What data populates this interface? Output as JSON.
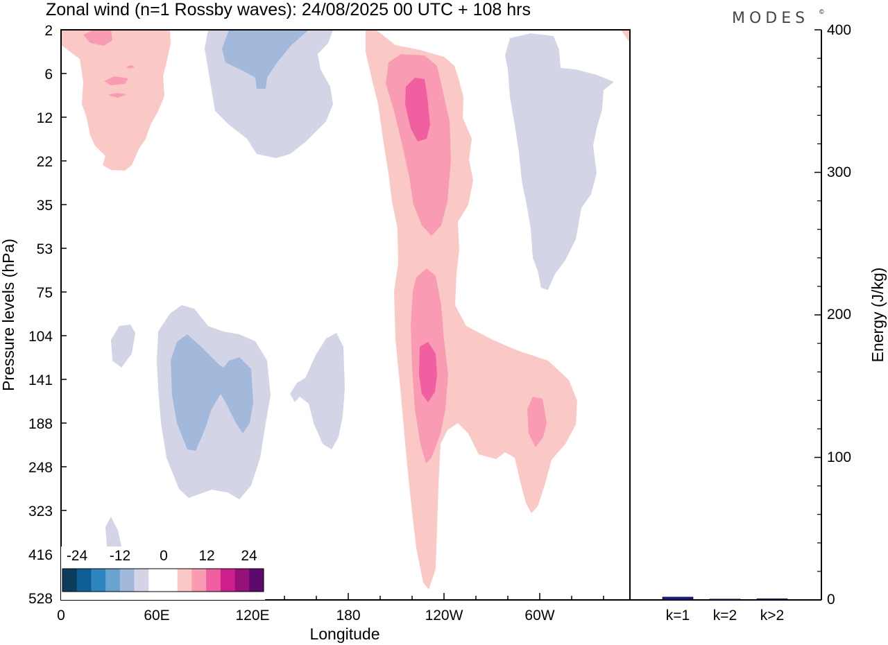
{
  "title": "Zonal wind (n=1 Rossby waves):  24/08/2025  00 UTC  + 108 hrs",
  "logo": "MODES",
  "logo_mark": "©",
  "chart_data": {
    "type": "contour",
    "xlabel": "Longitude",
    "ylabel": "Pressure levels (hPa)",
    "x_ticks": [
      "0",
      "60E",
      "120E",
      "180",
      "120W",
      "60W"
    ],
    "y_ticks": [
      "2",
      "6",
      "12",
      "22",
      "35",
      "53",
      "75",
      "104",
      "141",
      "188",
      "248",
      "323",
      "416",
      "528"
    ],
    "colorbar": {
      "labels": [
        "-24",
        "-12",
        "0",
        "12",
        "24"
      ],
      "colors": [
        "#0c3d5a",
        "#0d5f95",
        "#2e86c1",
        "#6aa3d0",
        "#a2b9dc",
        "#d3d5e7",
        "#ffffff",
        "#ffffff",
        "#fbc9c5",
        "#f89bb3",
        "#f060a0",
        "#cf1f8c",
        "#96127a",
        "#5c0a6b"
      ]
    },
    "energy": {
      "ylabel": "Energy (J/kg)",
      "y_ticks": [
        "0",
        "100",
        "200",
        "300",
        "400"
      ],
      "ylim": [
        0,
        400
      ],
      "categories": [
        "k=1",
        "k=2",
        "k>2"
      ],
      "values": [
        2,
        0.3,
        0.8
      ],
      "bar_color": "#1a1a8c"
    }
  }
}
